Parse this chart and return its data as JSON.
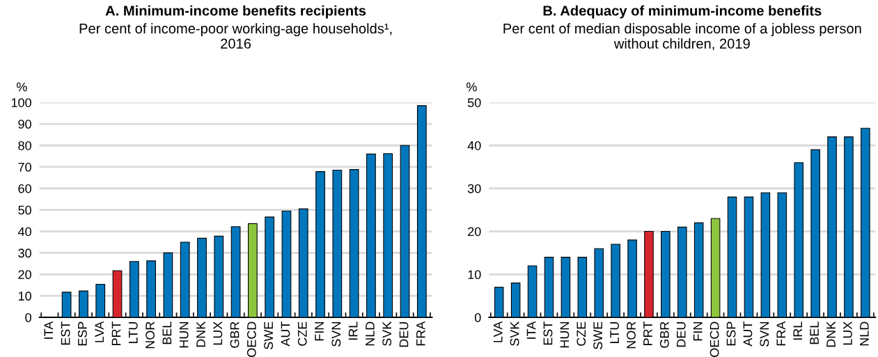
{
  "chart_data": [
    {
      "type": "bar",
      "title": "A. Minimum-income benefits recipients",
      "subtitle": "Per cent of income-poor working-age households¹, 2016",
      "ylabel": "%",
      "categories": [
        "ITA",
        "EST",
        "ESP",
        "LVA",
        "PRT",
        "LTU",
        "NOR",
        "BEL",
        "HUN",
        "DNK",
        "LUX",
        "GBR",
        "OECD",
        "SWE",
        "AUT",
        "CZE",
        "FIN",
        "SVN",
        "IRL",
        "NLD",
        "SVK",
        "DEU",
        "FRA"
      ],
      "values": [
        null,
        11.7,
        12.3,
        15.4,
        21.7,
        26.0,
        26.3,
        30.0,
        35.0,
        36.8,
        37.8,
        42.2,
        43.6,
        46.7,
        49.5,
        50.5,
        67.8,
        68.5,
        68.8,
        76.0,
        76.2,
        80.0,
        98.5
      ],
      "colors": [
        "#0077bd",
        "#0077bd",
        "#0077bd",
        "#0077bd",
        "#d7252c",
        "#0077bd",
        "#0077bd",
        "#0077bd",
        "#0077bd",
        "#0077bd",
        "#0077bd",
        "#0077bd",
        "#8cc63f",
        "#0077bd",
        "#0077bd",
        "#0077bd",
        "#0077bd",
        "#0077bd",
        "#0077bd",
        "#0077bd",
        "#0077bd",
        "#0077bd",
        "#0077bd"
      ],
      "ylim": [
        0,
        100
      ],
      "yticks": [
        0,
        10,
        20,
        30,
        40,
        50,
        60,
        70,
        80,
        90,
        100
      ],
      "grid": "y",
      "legend": false
    },
    {
      "type": "bar",
      "title": "B. Adequacy of minimum-income benefits",
      "subtitle": "Per cent of median disposable income of a jobless person without children, 2019",
      "ylabel": "%",
      "categories": [
        "LVA",
        "SVK",
        "ITA",
        "EST",
        "HUN",
        "CZE",
        "SWE",
        "LTU",
        "NOR",
        "PRT",
        "GBR",
        "DEU",
        "FIN",
        "OECD",
        "ESP",
        "AUT",
        "SVN",
        "FRA",
        "IRL",
        "BEL",
        "DNK",
        "LUX",
        "NLD"
      ],
      "values": [
        7,
        8,
        12,
        14,
        14,
        14,
        16,
        17,
        18,
        20,
        20,
        21,
        22,
        23,
        28,
        28,
        29,
        29,
        36,
        39,
        42,
        42,
        44
      ],
      "colors": [
        "#0077bd",
        "#0077bd",
        "#0077bd",
        "#0077bd",
        "#0077bd",
        "#0077bd",
        "#0077bd",
        "#0077bd",
        "#0077bd",
        "#d7252c",
        "#0077bd",
        "#0077bd",
        "#0077bd",
        "#8cc63f",
        "#0077bd",
        "#0077bd",
        "#0077bd",
        "#0077bd",
        "#0077bd",
        "#0077bd",
        "#0077bd",
        "#0077bd",
        "#0077bd"
      ],
      "ylim": [
        0,
        50
      ],
      "yticks": [
        0,
        10,
        20,
        30,
        40,
        50
      ],
      "grid": "y",
      "legend": false
    }
  ]
}
